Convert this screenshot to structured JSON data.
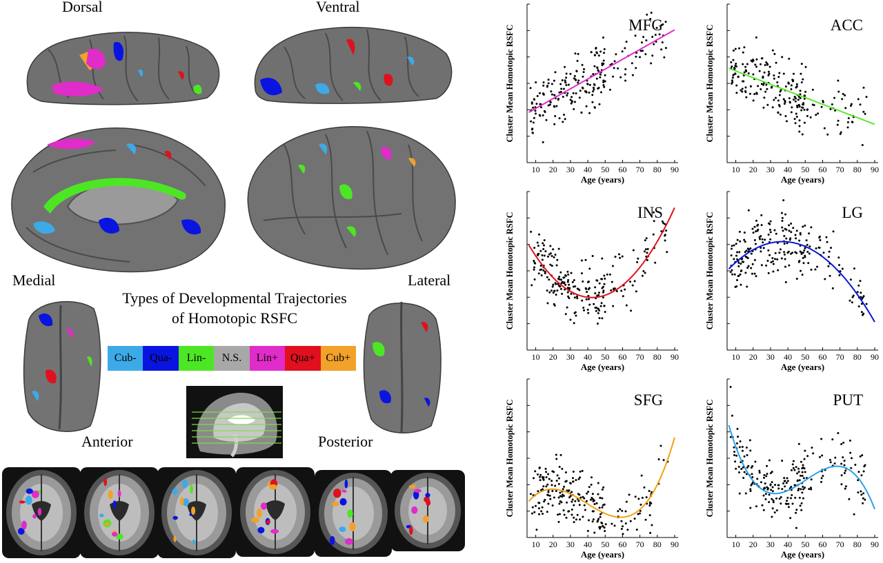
{
  "brain_panel": {
    "views": {
      "dorsal": "Dorsal",
      "ventral": "Ventral",
      "medial": "Medial",
      "lateral": "Lateral",
      "anterior": "Anterior",
      "posterior": "Posterior"
    },
    "legend": {
      "title_line1": "Types of Developmental Trajectories",
      "title_line2": "of Homotopic RSFC",
      "items": [
        {
          "label": "Cub-",
          "color": "#3daae8"
        },
        {
          "label": "Qua-",
          "color": "#0a14e0"
        },
        {
          "label": "Lin-",
          "color": "#4de624"
        },
        {
          "label": "N.S.",
          "color": "#a8a8a8"
        },
        {
          "label": "Lin+",
          "color": "#e02cc8"
        },
        {
          "label": "Qua+",
          "color": "#e0101e"
        },
        {
          "label": "Cub+",
          "color": "#f2a12a"
        }
      ]
    }
  },
  "chart_data": [
    {
      "type": "scatter",
      "title": "MFG",
      "fit": "linear",
      "fit_color": "#e02cc8",
      "xlabel": "Age (years)",
      "ylabel": "Cluster Mean Homotopic RSFC",
      "xlim": [
        5,
        92
      ],
      "ylim": [
        0,
        1
      ],
      "xticks": [
        10,
        20,
        30,
        40,
        50,
        60,
        70,
        80,
        90
      ],
      "coef": [
        0.28,
        0.0062,
        0,
        0
      ],
      "seed": 11
    },
    {
      "type": "scatter",
      "title": "ACC",
      "fit": "linear",
      "fit_color": "#5ae82a",
      "xlabel": "Age (years)",
      "ylabel": "Cluster Mean Homotopic RSFC",
      "xlim": [
        5,
        92
      ],
      "ylim": [
        0,
        1
      ],
      "xticks": [
        10,
        20,
        30,
        40,
        50,
        60,
        70,
        80,
        90
      ],
      "coef": [
        0.62,
        -0.0042,
        0,
        0
      ],
      "seed": 23
    },
    {
      "type": "scatter",
      "title": "INS",
      "fit": "quadratic",
      "fit_color": "#e0101e",
      "xlabel": "Age (years)",
      "ylabel": "Cluster Mean Homotopic RSFC",
      "xlim": [
        5,
        92
      ],
      "ylim": [
        0,
        1
      ],
      "xticks": [
        10,
        20,
        30,
        40,
        50,
        60,
        70,
        80,
        90
      ],
      "coef": [
        0.7813,
        -0.0212,
        0.00025,
        0
      ],
      "seed": 37
    },
    {
      "type": "scatter",
      "title": "LG",
      "fit": "quadratic",
      "fit_color": "#0a14d8",
      "xlabel": "Age (years)",
      "ylabel": "Cluster Mean Homotopic RSFC",
      "xlim": [
        5,
        92
      ],
      "ylim": [
        0,
        1
      ],
      "xticks": [
        10,
        20,
        30,
        40,
        50,
        60,
        70,
        80,
        90
      ],
      "coef": [
        0.4386,
        0.0133,
        -0.00018,
        0
      ],
      "seed": 49
    },
    {
      "type": "scatter",
      "title": "SFG",
      "fit": "cubic",
      "fit_color": "#f2a012",
      "xlabel": "Age (years)",
      "ylabel": "Cluster Mean Homotopic RSFC",
      "xlim": [
        5,
        92
      ],
      "ylim": [
        0,
        1
      ],
      "xticks": [
        10,
        20,
        30,
        40,
        50,
        60,
        70,
        80,
        90
      ],
      "coef": [
        0.131,
        0.02005,
        -0.000683,
        5.8e-06
      ],
      "seed": 61
    },
    {
      "type": "scatter",
      "title": "PUT",
      "fit": "cubic",
      "fit_color": "#2aa0ea",
      "xlabel": "Age (years)",
      "ylabel": "Cluster Mean Homotopic RSFC",
      "xlim": [
        5,
        92
      ],
      "ylim": [
        0,
        1
      ],
      "xticks": [
        10,
        20,
        30,
        40,
        50,
        60,
        70,
        80,
        90
      ],
      "coef": [
        0.9733,
        -0.05076,
        0.00115,
        -7.6e-06
      ],
      "seed": 73
    }
  ]
}
